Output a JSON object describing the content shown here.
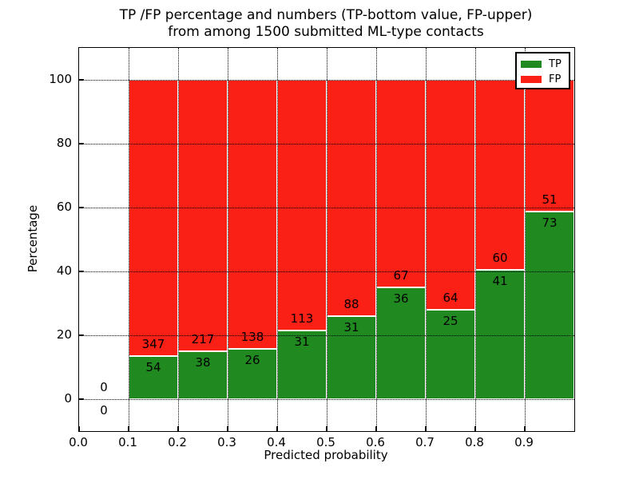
{
  "figure_title": {
    "line1": "TP /FP percentage and numbers (TP-bottom value, FP-upper)",
    "line2": "from among 1500 submitted ML-type contacts"
  },
  "chart_data": {
    "type": "bar",
    "subtype": "stacked-percentage",
    "title": "TP /FP percentage and numbers (TP-bottom value, FP-upper) from among 1500 submitted ML-type contacts",
    "xlabel": "Predicted probability",
    "ylabel": "Percentage",
    "xlim": [
      0.0,
      1.0
    ],
    "ylim": [
      -10,
      110
    ],
    "grid": "dotted",
    "bin_width": 0.1,
    "total_contacts": 1500,
    "x_tick_values": [
      0.0,
      0.1,
      0.2,
      0.3,
      0.4,
      0.5,
      0.6,
      0.7,
      0.8,
      0.9
    ],
    "x_tick_labels": [
      "0.0",
      "0.1",
      "0.2",
      "0.3",
      "0.4",
      "0.5",
      "0.6",
      "0.7",
      "0.8",
      "0.9"
    ],
    "y_ticks": [
      0,
      20,
      40,
      60,
      80,
      100
    ],
    "colors": {
      "tp": "#208a20",
      "fp": "#fa2015",
      "bar_edge": "#ffffff",
      "grid": "#000000"
    },
    "legend": {
      "position": "upper right",
      "entries": [
        {
          "label": "TP",
          "color_key": "tp"
        },
        {
          "label": "FP",
          "color_key": "fp"
        }
      ]
    },
    "bins": [
      {
        "x_start": 0.0,
        "tp_count": 0,
        "fp_count": 0,
        "tp_pct": 0.0,
        "fp_pct": 0.0
      },
      {
        "x_start": 0.1,
        "tp_count": 54,
        "fp_count": 347,
        "tp_pct": 13.47,
        "fp_pct": 86.53
      },
      {
        "x_start": 0.2,
        "tp_count": 38,
        "fp_count": 217,
        "tp_pct": 14.9,
        "fp_pct": 85.1
      },
      {
        "x_start": 0.3,
        "tp_count": 26,
        "fp_count": 138,
        "tp_pct": 15.85,
        "fp_pct": 84.15
      },
      {
        "x_start": 0.4,
        "tp_count": 31,
        "fp_count": 113,
        "tp_pct": 21.53,
        "fp_pct": 78.47
      },
      {
        "x_start": 0.5,
        "tp_count": 31,
        "fp_count": 88,
        "tp_pct": 26.05,
        "fp_pct": 73.95
      },
      {
        "x_start": 0.6,
        "tp_count": 36,
        "fp_count": 67,
        "tp_pct": 34.95,
        "fp_pct": 65.05
      },
      {
        "x_start": 0.7,
        "tp_count": 25,
        "fp_count": 64,
        "tp_pct": 28.09,
        "fp_pct": 71.91
      },
      {
        "x_start": 0.8,
        "tp_count": 41,
        "fp_count": 60,
        "tp_pct": 40.59,
        "fp_pct": 59.41
      },
      {
        "x_start": 0.9,
        "tp_count": 73,
        "fp_count": 51,
        "tp_pct": 58.87,
        "fp_pct": 41.13
      }
    ]
  }
}
